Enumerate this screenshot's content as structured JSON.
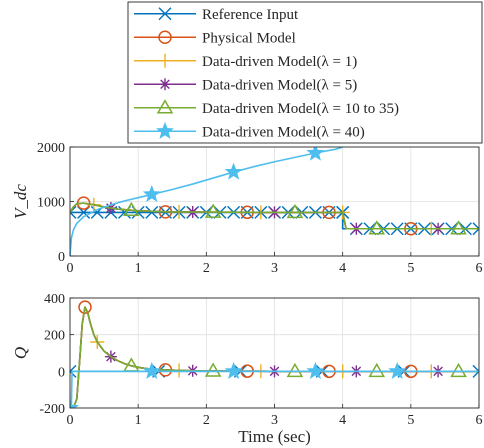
{
  "chart_data": [
    {
      "type": "line",
      "title": "",
      "xlabel": "",
      "ylabel": "V_dc",
      "xlim": [
        0,
        6
      ],
      "ylim": [
        0,
        2000
      ],
      "xticks": [
        "0",
        "1",
        "2",
        "3",
        "4",
        "5",
        "6"
      ],
      "yticks": [
        "0",
        "1000",
        "2000"
      ],
      "grid": true,
      "series": [
        {
          "name": "Reference Input",
          "color": "#0072bd",
          "marker": "x",
          "x": [
            0,
            0.2,
            0.4,
            0.6,
            0.8,
            1.0,
            1.2,
            1.4,
            1.6,
            1.8,
            2.0,
            2.2,
            2.4,
            2.6,
            2.8,
            3.0,
            3.2,
            3.4,
            3.6,
            3.8,
            4.0,
            4.0,
            4.2,
            4.4,
            4.6,
            4.8,
            5.0,
            5.2,
            5.4,
            5.6,
            5.8,
            6.0
          ],
          "y": [
            800,
            800,
            800,
            800,
            800,
            800,
            800,
            800,
            800,
            800,
            800,
            800,
            800,
            800,
            800,
            800,
            800,
            800,
            800,
            800,
            800,
            500,
            500,
            500,
            500,
            500,
            500,
            500,
            500,
            500,
            500,
            500
          ]
        },
        {
          "name": "Physical Model",
          "color": "#d95319",
          "marker": "o",
          "x": [
            0,
            0.05,
            0.1,
            0.2,
            0.35,
            0.5,
            0.7,
            1.0,
            1.4,
            2.0,
            3.0,
            4.0,
            4.05,
            4.2,
            5.0,
            6.0
          ],
          "y": [
            800,
            900,
            960,
            970,
            940,
            900,
            860,
            830,
            810,
            805,
            800,
            800,
            500,
            500,
            500,
            500
          ],
          "marker_x": [
            0.2,
            1.4,
            2.6,
            3.8,
            5.0
          ]
        },
        {
          "name": "Data-driven Model(λ = 1)",
          "color": "#edb120",
          "marker": "+",
          "x": [
            0,
            0.05,
            0.1,
            0.2,
            0.35,
            0.5,
            0.7,
            1.0,
            1.4,
            2.0,
            3.0,
            4.0,
            4.05,
            4.2,
            5.0,
            6.0
          ],
          "y": [
            800,
            900,
            960,
            970,
            940,
            900,
            860,
            830,
            810,
            805,
            800,
            800,
            500,
            500,
            500,
            500
          ],
          "marker_x": [
            0.35,
            1.6,
            2.8,
            4.0,
            5.3
          ]
        },
        {
          "name": "Data-driven Model(λ = 5)",
          "color": "#7e2f8e",
          "marker": "*",
          "x": [
            0,
            0.05,
            0.1,
            0.2,
            0.35,
            0.5,
            0.7,
            1.0,
            1.4,
            2.0,
            3.0,
            4.0,
            4.05,
            4.2,
            5.0,
            6.0
          ],
          "y": [
            800,
            900,
            960,
            970,
            940,
            900,
            860,
            830,
            810,
            805,
            800,
            800,
            500,
            500,
            500,
            500
          ],
          "marker_x": [
            0.6,
            1.8,
            3.0,
            4.2,
            5.4
          ]
        },
        {
          "name": "Data-driven Model(λ = 10 to 35)",
          "color": "#77ac30",
          "marker": "triangle",
          "x": [
            0,
            0.05,
            0.1,
            0.2,
            0.35,
            0.5,
            0.7,
            1.0,
            1.4,
            2.0,
            3.0,
            4.0,
            4.05,
            4.2,
            5.0,
            6.0
          ],
          "y": [
            800,
            900,
            960,
            970,
            940,
            900,
            860,
            830,
            810,
            805,
            800,
            800,
            500,
            500,
            500,
            500
          ],
          "marker_x": [
            0.9,
            2.1,
            3.3,
            4.5,
            5.7
          ]
        },
        {
          "name": "Data-driven Model(λ = 40)",
          "color": "#4dbeee",
          "marker": "pentagram",
          "x": [
            0,
            0.02,
            0.05,
            0.1,
            0.2,
            0.4,
            0.6,
            0.8,
            1.0,
            1.2,
            1.5,
            1.8,
            2.1,
            2.4,
            2.7,
            3.0,
            3.3,
            3.6,
            3.9,
            4.0
          ],
          "y": [
            0,
            330,
            480,
            600,
            720,
            850,
            940,
            1010,
            1070,
            1130,
            1220,
            1320,
            1430,
            1540,
            1640,
            1730,
            1810,
            1890,
            1960,
            2000
          ],
          "marker_x": [
            1.2,
            2.4,
            3.6
          ]
        }
      ]
    },
    {
      "type": "line",
      "title": "",
      "xlabel": "Time (sec)",
      "ylabel": "Q",
      "xlim": [
        0,
        6
      ],
      "ylim": [
        -200,
        400
      ],
      "xticks": [
        "0",
        "1",
        "2",
        "3",
        "4",
        "5",
        "6"
      ],
      "yticks": [
        "-200",
        "0",
        "200",
        "400"
      ],
      "grid": true,
      "series": [
        {
          "name": "Reference Input",
          "color": "#0072bd",
          "marker": "x",
          "x": [
            0,
            6
          ],
          "y": [
            0,
            0
          ],
          "marker_x": [
            0.0,
            1.3,
            2.5,
            3.7,
            4.9,
            6.0
          ]
        },
        {
          "name": "Physical Model",
          "color": "#d95319",
          "marker": "o",
          "x": [
            0,
            0.05,
            0.1,
            0.14,
            0.18,
            0.22,
            0.26,
            0.3,
            0.35,
            0.4,
            0.5,
            0.6,
            0.7,
            0.8,
            0.9,
            1.0,
            1.1,
            1.2,
            1.3,
            1.4,
            1.6,
            1.8,
            2.0,
            2.5,
            3.0,
            4.0,
            5.0,
            6.0
          ],
          "y": [
            -200,
            -200,
            -150,
            50,
            260,
            350,
            320,
            260,
            200,
            160,
            110,
            80,
            58,
            42,
            30,
            22,
            16,
            12,
            10,
            8,
            5,
            3,
            2,
            1,
            0,
            0,
            0,
            0
          ],
          "marker_x": [
            0.22,
            1.4,
            2.6,
            3.8,
            5.0
          ]
        },
        {
          "name": "Data-driven Model(λ = 1)",
          "color": "#edb120",
          "marker": "+",
          "x": [
            0,
            0.05,
            0.1,
            0.14,
            0.18,
            0.22,
            0.26,
            0.3,
            0.35,
            0.4,
            0.5,
            0.6,
            0.7,
            0.8,
            0.9,
            1.0,
            1.1,
            1.2,
            1.3,
            1.4,
            1.6,
            1.8,
            2.0,
            2.5,
            3.0,
            4.0,
            5.0,
            6.0
          ],
          "y": [
            -200,
            -200,
            -150,
            50,
            260,
            350,
            320,
            260,
            200,
            160,
            110,
            80,
            58,
            42,
            30,
            22,
            16,
            12,
            10,
            8,
            5,
            3,
            2,
            1,
            0,
            0,
            0,
            0
          ],
          "marker_x": [
            0.4,
            1.6,
            2.8,
            4.0,
            5.3
          ]
        },
        {
          "name": "Data-driven Model(λ = 5)",
          "color": "#7e2f8e",
          "marker": "*",
          "x": [
            0,
            0.05,
            0.1,
            0.14,
            0.18,
            0.22,
            0.26,
            0.3,
            0.35,
            0.4,
            0.5,
            0.6,
            0.7,
            0.8,
            0.9,
            1.0,
            1.1,
            1.2,
            1.3,
            1.4,
            1.6,
            1.8,
            2.0,
            2.5,
            3.0,
            4.0,
            5.0,
            6.0
          ],
          "y": [
            -200,
            -200,
            -150,
            50,
            260,
            350,
            320,
            260,
            200,
            160,
            110,
            80,
            58,
            42,
            30,
            22,
            16,
            12,
            10,
            8,
            5,
            3,
            2,
            1,
            0,
            0,
            0,
            0
          ],
          "marker_x": [
            0.6,
            1.8,
            3.0,
            4.2,
            5.4
          ]
        },
        {
          "name": "Data-driven Model(λ = 10 to 35)",
          "color": "#77ac30",
          "marker": "triangle",
          "x": [
            0,
            0.05,
            0.1,
            0.14,
            0.18,
            0.22,
            0.26,
            0.3,
            0.35,
            0.4,
            0.5,
            0.6,
            0.7,
            0.8,
            0.9,
            1.0,
            1.1,
            1.2,
            1.3,
            1.4,
            1.6,
            1.8,
            2.0,
            2.5,
            3.0,
            4.0,
            5.0,
            6.0
          ],
          "y": [
            -200,
            -200,
            -150,
            50,
            260,
            350,
            320,
            260,
            200,
            160,
            110,
            80,
            58,
            42,
            30,
            22,
            16,
            12,
            10,
            8,
            5,
            3,
            2,
            1,
            0,
            0,
            0,
            0
          ],
          "marker_x": [
            0.9,
            2.1,
            3.3,
            4.5,
            5.7
          ]
        },
        {
          "name": "Data-driven Model(λ = 40)",
          "color": "#4dbeee",
          "marker": "pentagram",
          "x": [
            0,
            0.02,
            0.03,
            0.05,
            0.08,
            0.1,
            6.0
          ],
          "y": [
            -200,
            -200,
            0,
            0,
            0,
            0,
            0
          ],
          "marker_x": [
            0.0,
            1.2,
            2.4,
            3.6,
            4.8
          ]
        }
      ]
    }
  ]
}
